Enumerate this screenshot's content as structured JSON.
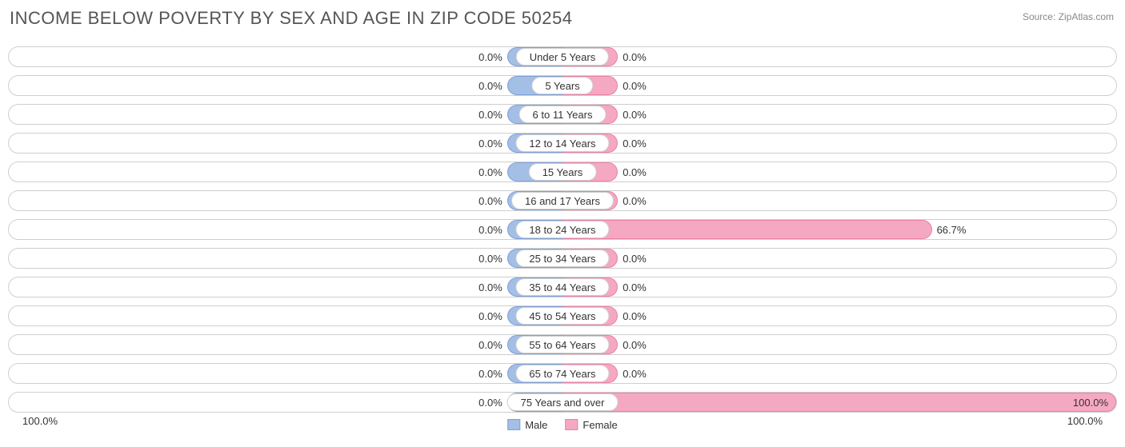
{
  "title": "INCOME BELOW POVERTY BY SEX AND AGE IN ZIP CODE 50254",
  "source": "Source: ZipAtlas.com",
  "colors": {
    "male_fill": "#a4bfe6",
    "male_border": "#7ea0d6",
    "female_fill": "#f5a8c2",
    "female_border": "#ec80a6",
    "track_border": "#cfcfcf",
    "text": "#333333",
    "title_text": "#555555",
    "source_text": "#888888",
    "background": "#ffffff"
  },
  "chart": {
    "type": "diverging-bar",
    "min_bar_pct": 10.0,
    "axis_left": "100.0%",
    "axis_right": "100.0%",
    "legend": {
      "male": "Male",
      "female": "Female"
    },
    "rows": [
      {
        "label": "Under 5 Years",
        "male": 0.0,
        "female": 0.0
      },
      {
        "label": "5 Years",
        "male": 0.0,
        "female": 0.0
      },
      {
        "label": "6 to 11 Years",
        "male": 0.0,
        "female": 0.0
      },
      {
        "label": "12 to 14 Years",
        "male": 0.0,
        "female": 0.0
      },
      {
        "label": "15 Years",
        "male": 0.0,
        "female": 0.0
      },
      {
        "label": "16 and 17 Years",
        "male": 0.0,
        "female": 0.0
      },
      {
        "label": "18 to 24 Years",
        "male": 0.0,
        "female": 66.7
      },
      {
        "label": "25 to 34 Years",
        "male": 0.0,
        "female": 0.0
      },
      {
        "label": "35 to 44 Years",
        "male": 0.0,
        "female": 0.0
      },
      {
        "label": "45 to 54 Years",
        "male": 0.0,
        "female": 0.0
      },
      {
        "label": "55 to 64 Years",
        "male": 0.0,
        "female": 0.0
      },
      {
        "label": "65 to 74 Years",
        "male": 0.0,
        "female": 0.0
      },
      {
        "label": "75 Years and over",
        "male": 0.0,
        "female": 100.0
      }
    ]
  }
}
